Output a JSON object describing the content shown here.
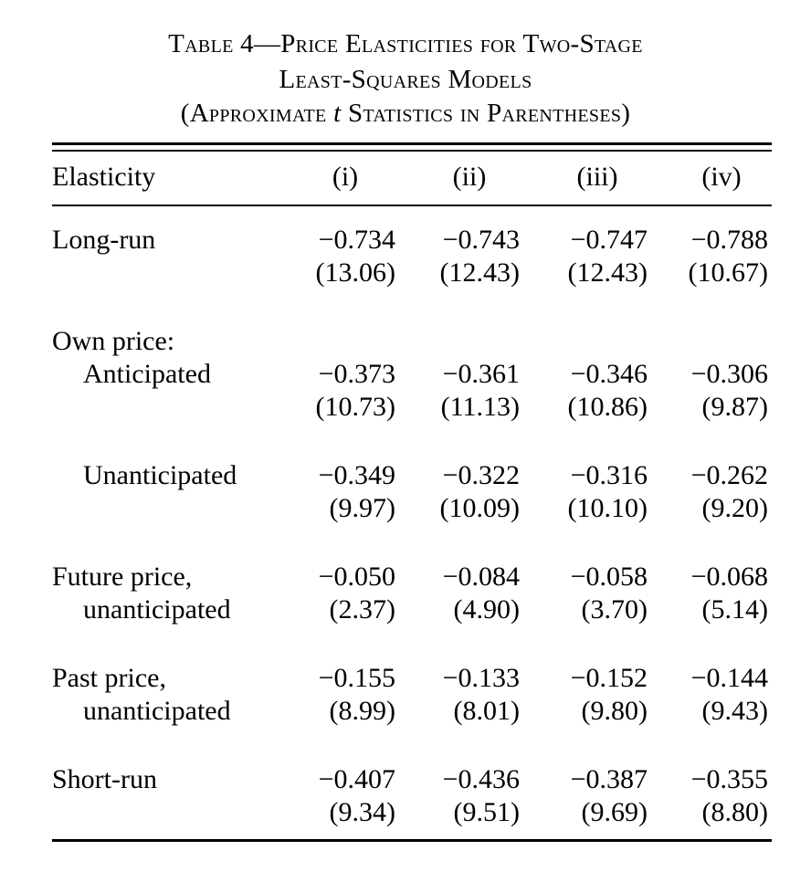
{
  "caption": {
    "line1": "Table 4—Price Elasticities for Two-Stage",
    "line2": "Least-Squares Models",
    "line3_prefix": "(Approximate ",
    "line3_italic": "t",
    "line3_suffix": " Statistics in Parentheses)"
  },
  "table": {
    "header": {
      "label": "Elasticity",
      "cols": [
        "(i)",
        "(ii)",
        "(iii)",
        "(iv)"
      ]
    },
    "rows": [
      {
        "label": "Long-run",
        "values": [
          "−0.734",
          "−0.743",
          "−0.747",
          "−0.788"
        ],
        "tstats": [
          "(13.06)",
          "(12.43)",
          "(12.43)",
          "(10.67)"
        ]
      },
      {
        "group_label": "Own price:",
        "label": "Anticipated",
        "values": [
          "−0.373",
          "−0.361",
          "−0.346",
          "−0.306"
        ],
        "tstats": [
          "(10.73)",
          "(11.13)",
          "(10.86)",
          "(9.87)"
        ]
      },
      {
        "label": "Unanticipated",
        "values": [
          "−0.349",
          "−0.322",
          "−0.316",
          "−0.262"
        ],
        "tstats": [
          "(9.97)",
          "(10.09)",
          "(10.10)",
          "(9.20)"
        ]
      },
      {
        "label": "Future price,",
        "label2": "unanticipated",
        "values": [
          "−0.050",
          "−0.084",
          "−0.058",
          "−0.068"
        ],
        "tstats": [
          "(2.37)",
          "(4.90)",
          "(3.70)",
          "(5.14)"
        ]
      },
      {
        "label": "Past price,",
        "label2": "unanticipated",
        "values": [
          "−0.155",
          "−0.133",
          "−0.152",
          "−0.144"
        ],
        "tstats": [
          "(8.99)",
          "(8.01)",
          "(9.80)",
          "(9.43)"
        ]
      },
      {
        "label": "Short-run",
        "values": [
          "−0.407",
          "−0.436",
          "−0.387",
          "−0.355"
        ],
        "tstats": [
          "(9.34)",
          "(9.51)",
          "(9.69)",
          "(8.80)"
        ]
      }
    ]
  }
}
